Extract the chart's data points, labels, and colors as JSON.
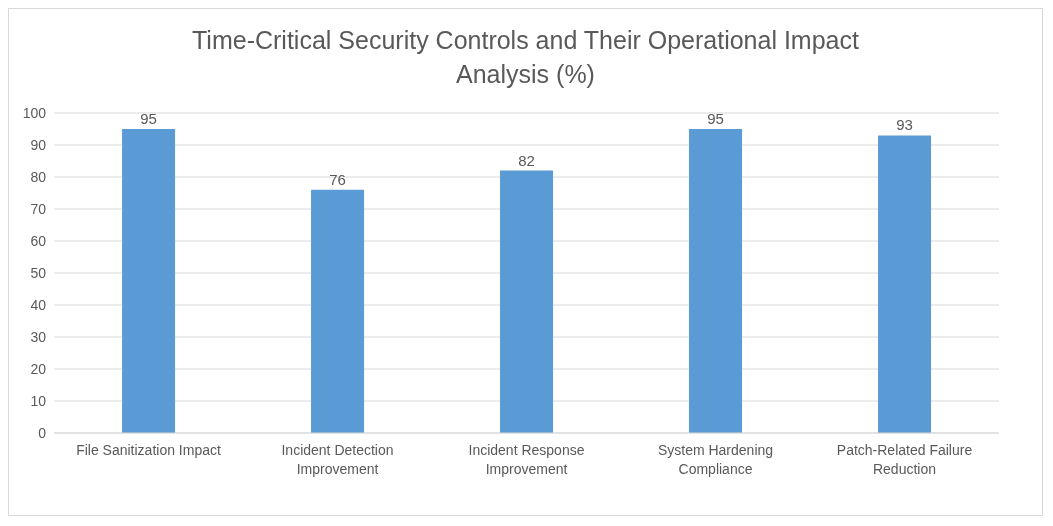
{
  "chart_data": {
    "type": "bar",
    "title": "Time-Critical Security Controls and Their Operational Impact Analysis (%)",
    "categories": [
      "File Sanitization Impact",
      "Incident Detection Improvement",
      "Incident Response Improvement",
      "System Hardening Compliance",
      "Patch-Related Failure Reduction"
    ],
    "values": [
      95,
      76,
      82,
      95,
      93
    ],
    "color": "#5b9bd5",
    "ylim": [
      0,
      100
    ],
    "yticks": [
      0,
      10,
      20,
      30,
      40,
      50,
      60,
      70,
      80,
      90,
      100
    ],
    "grid": "y",
    "data_labels": true
  }
}
